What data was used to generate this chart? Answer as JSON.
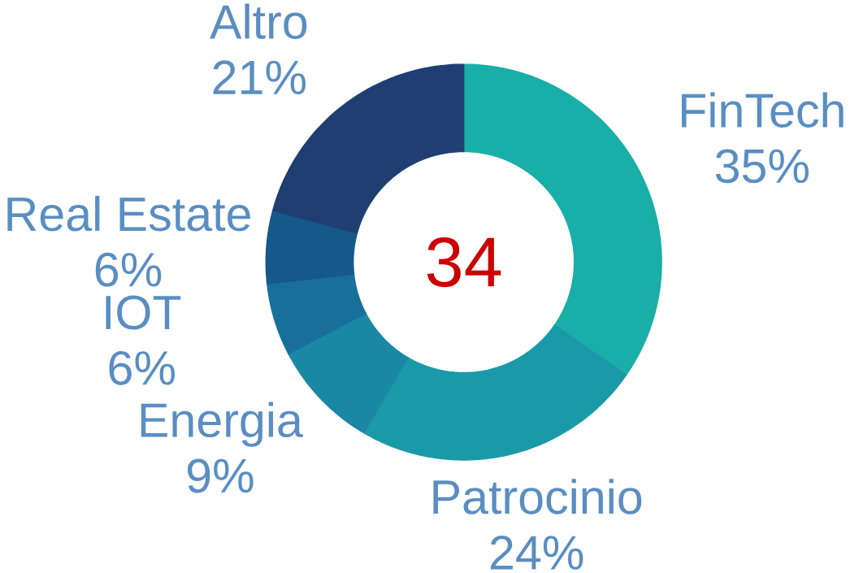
{
  "chart_data": {
    "type": "donut",
    "categories": [
      "FinTech",
      "Patrocinio",
      "Energia",
      "IOT",
      "Real Estate",
      "Altro"
    ],
    "values": [
      35,
      24,
      9,
      6,
      6,
      21
    ],
    "colors": [
      "#1aaea8",
      "#1a9aa8",
      "#1a88a5",
      "#176f9a",
      "#15588a",
      "#1f3f72"
    ],
    "value_labels": [
      "35%",
      "24%",
      "9%",
      "6%",
      "6%",
      "21%"
    ],
    "annotations": [
      "34"
    ]
  }
}
